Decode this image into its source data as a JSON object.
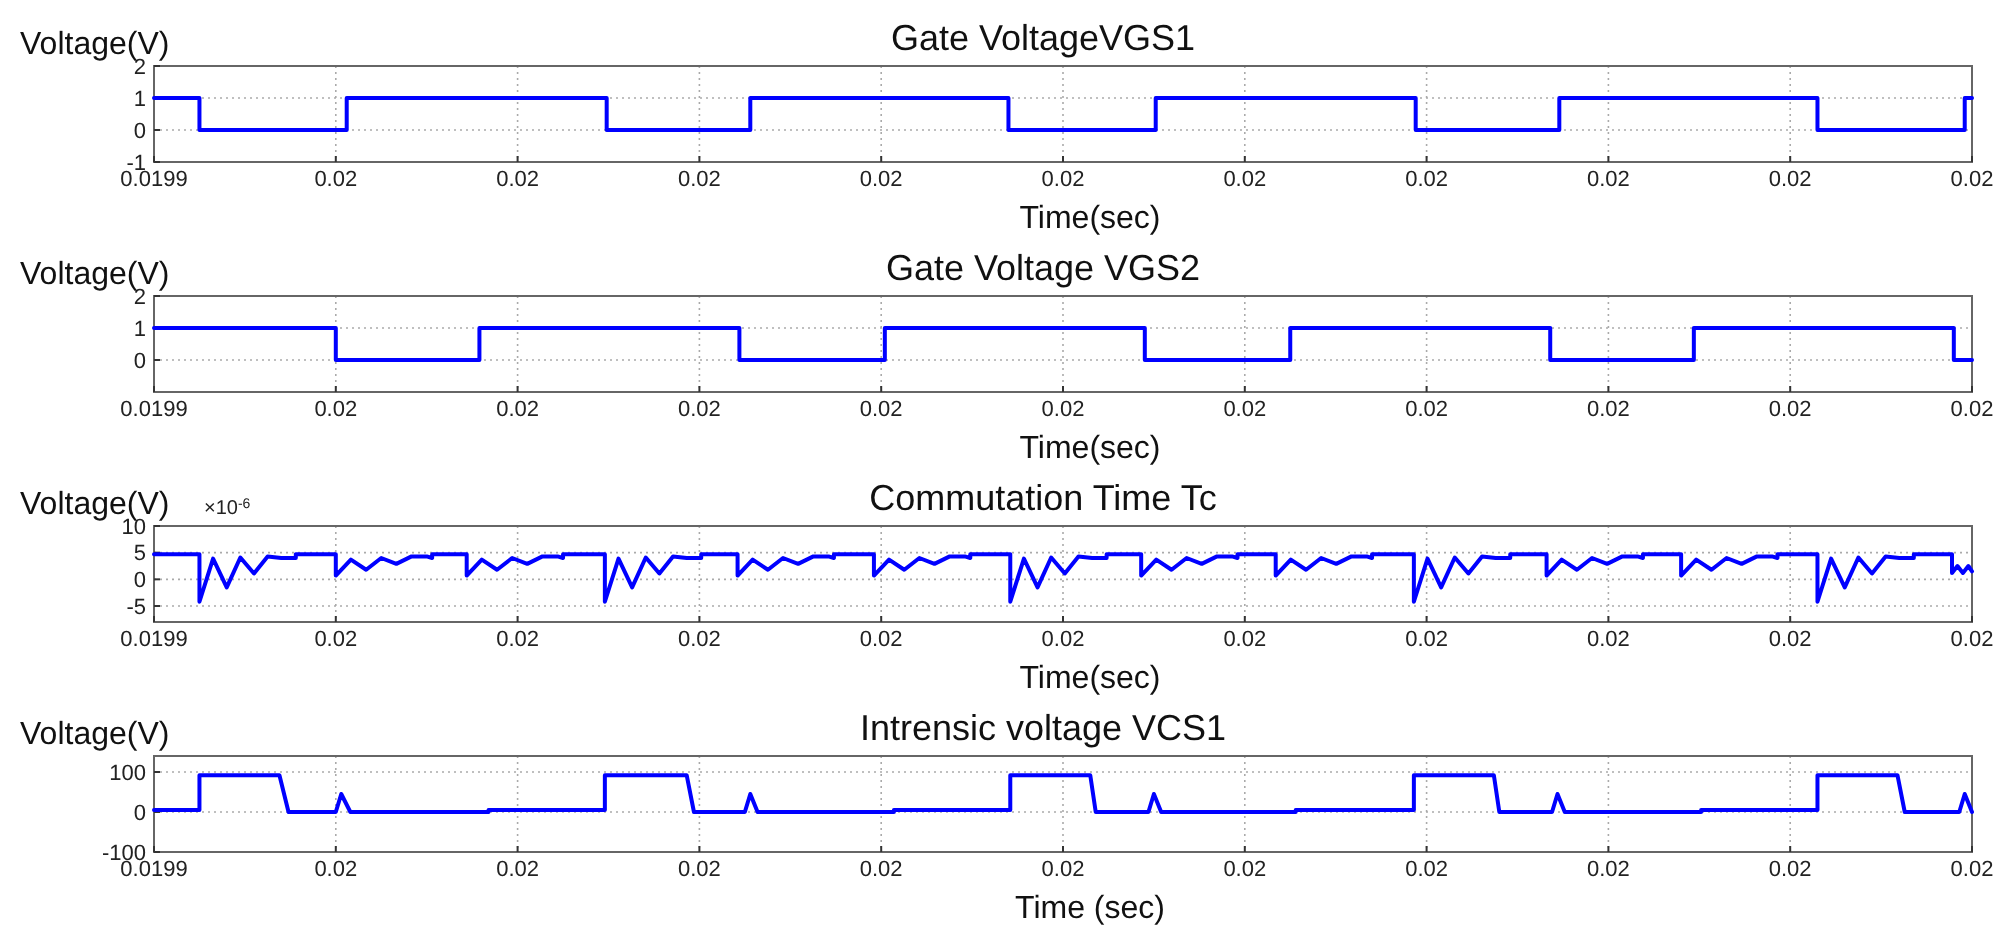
{
  "chart_data": [
    {
      "type": "step",
      "title": "Gate VoltageVGS1",
      "xlabel": "Time(sec)",
      "ylabel": "Voltage(V)",
      "grid": true,
      "xlim": [
        0.0199,
        0.02
      ],
      "ylim": [
        -1,
        2
      ],
      "yticks": [
        -1,
        0,
        1,
        2
      ],
      "xticks": [
        {
          "value": 0.0199,
          "label": "0.0199"
        },
        {
          "value": 0.01991,
          "label": "0.02"
        },
        {
          "value": 0.01992,
          "label": "0.02"
        },
        {
          "value": 0.01993,
          "label": "0.02"
        },
        {
          "value": 0.01994,
          "label": "0.02"
        },
        {
          "value": 0.01995,
          "label": "0.02"
        },
        {
          "value": 0.01996,
          "label": "0.02"
        },
        {
          "value": 0.01997,
          "label": "0.02"
        },
        {
          "value": 0.01998,
          "label": "0.02"
        },
        {
          "value": 0.01999,
          "label": "0.02"
        },
        {
          "value": 0.02,
          "label": "0.02"
        }
      ],
      "series": [
        {
          "color": "#0000ff",
          "x": [
            0.0199,
            0.0199025,
            0.0199106,
            0.0199249,
            0.0199328,
            0.019947,
            0.0199551,
            0.0199694,
            0.0199773,
            0.0199915,
            0.0199996,
            0.02
          ],
          "values": [
            1,
            0,
            1,
            0,
            1,
            0,
            1,
            0,
            1,
            0,
            1,
            1
          ]
        }
      ]
    },
    {
      "type": "step",
      "title": "Gate Voltage VGS2",
      "xlabel": "Time(sec)",
      "ylabel": "Voltage(V)",
      "grid": true,
      "xlim": [
        0.0199,
        0.02
      ],
      "ylim": [
        -1,
        2
      ],
      "yticks": [
        0,
        1,
        2
      ],
      "xticks": [
        {
          "value": 0.0199,
          "label": "0.0199"
        },
        {
          "value": 0.01991,
          "label": "0.02"
        },
        {
          "value": 0.01992,
          "label": "0.02"
        },
        {
          "value": 0.01993,
          "label": "0.02"
        },
        {
          "value": 0.01994,
          "label": "0.02"
        },
        {
          "value": 0.01995,
          "label": "0.02"
        },
        {
          "value": 0.01996,
          "label": "0.02"
        },
        {
          "value": 0.01997,
          "label": "0.02"
        },
        {
          "value": 0.01998,
          "label": "0.02"
        },
        {
          "value": 0.01999,
          "label": "0.02"
        },
        {
          "value": 0.02,
          "label": "0.02"
        }
      ],
      "series": [
        {
          "color": "#0000ff",
          "x": [
            0.0199,
            0.01991,
            0.0199179,
            0.0199322,
            0.0199402,
            0.0199545,
            0.0199625,
            0.0199768,
            0.0199847,
            0.019999,
            0.02
          ],
          "values": [
            1,
            0,
            1,
            0,
            1,
            0,
            1,
            0,
            1,
            0,
            0
          ]
        }
      ]
    },
    {
      "type": "line",
      "title": "Commutation Time Tc",
      "xlabel": "Time(sec)",
      "ylabel": "Voltage(V)",
      "annotations": [
        "×10$^{-6}$"
      ],
      "grid": true,
      "xlim": [
        0.0199,
        0.02
      ],
      "ylim": [
        -8,
        10
      ],
      "yticks": [
        -5,
        0,
        5,
        10
      ],
      "xticks": [
        {
          "value": 0.0199,
          "label": "0.0199"
        },
        {
          "value": 0.01991,
          "label": "0.02"
        },
        {
          "value": 0.01992,
          "label": "0.02"
        },
        {
          "value": 0.01993,
          "label": "0.02"
        },
        {
          "value": 0.01994,
          "label": "0.02"
        },
        {
          "value": 0.01995,
          "label": "0.02"
        },
        {
          "value": 0.01996,
          "label": "0.02"
        },
        {
          "value": 0.01997,
          "label": "0.02"
        },
        {
          "value": 0.01998,
          "label": "0.02"
        },
        {
          "value": 0.01999,
          "label": "0.02"
        },
        {
          "value": 0.02,
          "label": "0.02"
        }
      ],
      "series": [
        {
          "color": "#0000ff",
          "x": [
            0.0199,
            0.0199025,
            0.0199025,
            0.01990325,
            0.019904,
            0.01990475,
            0.0199055,
            0.01990625,
            0.019907,
            0.0199078,
            0.0199078,
            0.01991,
            0.01991,
            0.01991083,
            0.01991167,
            0.0199125,
            0.01991333,
            0.01991417,
            0.019915,
            0.0199153,
            0.0199153,
            0.0199172,
            0.0199172,
            0.01991803,
            0.01991887,
            0.0199197,
            0.01992053,
            0.01992137,
            0.0199222,
            0.0199225,
            0.0199225,
            0.0199248,
            0.0199248,
            0.01992555,
            0.0199263,
            0.01992705,
            0.0199278,
            0.01992855,
            0.0199293,
            0.0199301,
            0.0199301,
            0.0199321,
            0.0199321,
            0.01993293,
            0.01993377,
            0.0199346,
            0.01993543,
            0.01993627,
            0.0199371,
            0.0199374,
            0.0199374,
            0.0199396,
            0.0199396,
            0.01994043,
            0.01994127,
            0.0199421,
            0.01994293,
            0.01994377,
            0.0199446,
            0.0199449,
            0.0199449,
            0.0199471,
            0.0199471,
            0.01994785,
            0.0199486,
            0.01994935,
            0.0199501,
            0.01995085,
            0.0199516,
            0.0199524,
            0.0199524,
            0.0199543,
            0.0199543,
            0.01995513,
            0.01995597,
            0.0199568,
            0.01995763,
            0.01995847,
            0.0199593,
            0.0199596,
            0.0199596,
            0.0199617,
            0.0199617,
            0.01996253,
            0.01996337,
            0.0199642,
            0.01996503,
            0.01996587,
            0.0199667,
            0.019967,
            0.019967,
            0.0199693,
            0.0199693,
            0.01997005,
            0.0199708,
            0.01997155,
            0.0199723,
            0.01997305,
            0.0199738,
            0.0199746,
            0.0199746,
            0.0199766,
            0.0199766,
            0.01997743,
            0.01997827,
            0.0199791,
            0.01997993,
            0.01998077,
            0.0199816,
            0.0199819,
            0.0199819,
            0.019984,
            0.019984,
            0.01998483,
            0.01998567,
            0.0199865,
            0.01998733,
            0.01998817,
            0.019989,
            0.0199893,
            0.0199893,
            0.0199915,
            0.0199915,
            0.01999225,
            0.019993,
            0.01999375,
            0.0199945,
            0.01999525,
            0.019996,
            0.0199968,
            0.0199968,
            0.0199989,
            0.0199989,
            0.0199992,
            0.0199995,
            0.0199998,
            0.02
          ],
          "values": [
            4.7,
            4.7,
            -4.2,
            3.9,
            -1.5,
            4.1,
            1.1,
            4.3,
            4.0,
            4.0,
            4.7,
            4.7,
            0.7,
            3.7,
            1.8,
            4.0,
            2.9,
            4.3,
            4.3,
            4.0,
            4.7,
            4.7,
            0.7,
            3.7,
            1.8,
            4.0,
            2.9,
            4.3,
            4.3,
            4.0,
            4.7,
            4.7,
            -4.2,
            3.9,
            -1.5,
            4.1,
            1.1,
            4.3,
            4.0,
            4.0,
            4.7,
            4.7,
            0.7,
            3.7,
            1.8,
            4.0,
            2.9,
            4.3,
            4.3,
            4.0,
            4.7,
            4.7,
            0.7,
            3.7,
            1.8,
            4.0,
            2.9,
            4.3,
            4.3,
            4.0,
            4.7,
            4.7,
            -4.2,
            3.9,
            -1.5,
            4.1,
            1.1,
            4.3,
            4.0,
            4.0,
            4.7,
            4.7,
            0.7,
            3.7,
            1.8,
            4.0,
            2.9,
            4.3,
            4.3,
            4.0,
            4.7,
            4.7,
            0.7,
            3.7,
            1.8,
            4.0,
            2.9,
            4.3,
            4.3,
            4.0,
            4.7,
            4.7,
            -4.2,
            3.9,
            -1.5,
            4.1,
            1.1,
            4.3,
            4.0,
            4.0,
            4.7,
            4.7,
            0.7,
            3.7,
            1.8,
            4.0,
            2.9,
            4.3,
            4.3,
            4.0,
            4.7,
            4.7,
            0.7,
            3.7,
            1.8,
            4.0,
            2.9,
            4.3,
            4.3,
            4.0,
            4.7,
            4.7,
            -4.2,
            3.9,
            -1.5,
            4.1,
            1.1,
            4.3,
            4.0,
            4.0,
            4.7,
            4.7,
            1.2,
            2.5,
            1.2,
            2.5,
            1.5
          ]
        }
      ]
    },
    {
      "type": "line",
      "title": "Intrensic voltage VCS1",
      "xlabel": "Time (sec)",
      "ylabel": "Voltage(V)",
      "grid": true,
      "xlim": [
        0.0199,
        0.02
      ],
      "ylim": [
        -100,
        140
      ],
      "yticks": [
        -100,
        0,
        100
      ],
      "xticks": [
        {
          "value": 0.0199,
          "label": "0.0199"
        },
        {
          "value": 0.01991,
          "label": "0.02"
        },
        {
          "value": 0.01992,
          "label": "0.02"
        },
        {
          "value": 0.01993,
          "label": "0.02"
        },
        {
          "value": 0.01994,
          "label": "0.02"
        },
        {
          "value": 0.01995,
          "label": "0.02"
        },
        {
          "value": 0.01996,
          "label": "0.02"
        },
        {
          "value": 0.01997,
          "label": "0.02"
        },
        {
          "value": 0.01998,
          "label": "0.02"
        },
        {
          "value": 0.01999,
          "label": "0.02"
        },
        {
          "value": 0.02,
          "label": "0.02"
        }
      ],
      "series": [
        {
          "color": "#0000ff",
          "x": [
            0.0199,
            0.0199025,
            0.0199025,
            0.0199069,
            0.0199074,
            0.01991,
            0.0199103,
            0.0199108,
            0.0199184,
            0.0199184,
            0.0199248,
            0.0199248,
            0.0199293,
            0.0199297,
            0.0199325,
            0.0199328,
            0.0199332,
            0.0199407,
            0.0199407,
            0.0199471,
            0.0199471,
            0.0199515,
            0.0199518,
            0.0199547,
            0.019955,
            0.0199554,
            0.0199628,
            0.0199628,
            0.0199693,
            0.0199693,
            0.0199737,
            0.019974,
            0.0199769,
            0.0199772,
            0.0199776,
            0.0199851,
            0.0199851,
            0.0199915,
            0.0199915,
            0.0199959,
            0.0199963,
            0.0199993,
            0.0199996,
            0.02
          ],
          "values": [
            5,
            5,
            92,
            92,
            0,
            0,
            45,
            0,
            0,
            5,
            5,
            92,
            92,
            0,
            0,
            45,
            0,
            0,
            5,
            5,
            92,
            92,
            0,
            0,
            45,
            0,
            0,
            5,
            5,
            92,
            92,
            0,
            0,
            45,
            0,
            0,
            5,
            5,
            92,
            92,
            0,
            0,
            45,
            0
          ]
        }
      ]
    }
  ]
}
